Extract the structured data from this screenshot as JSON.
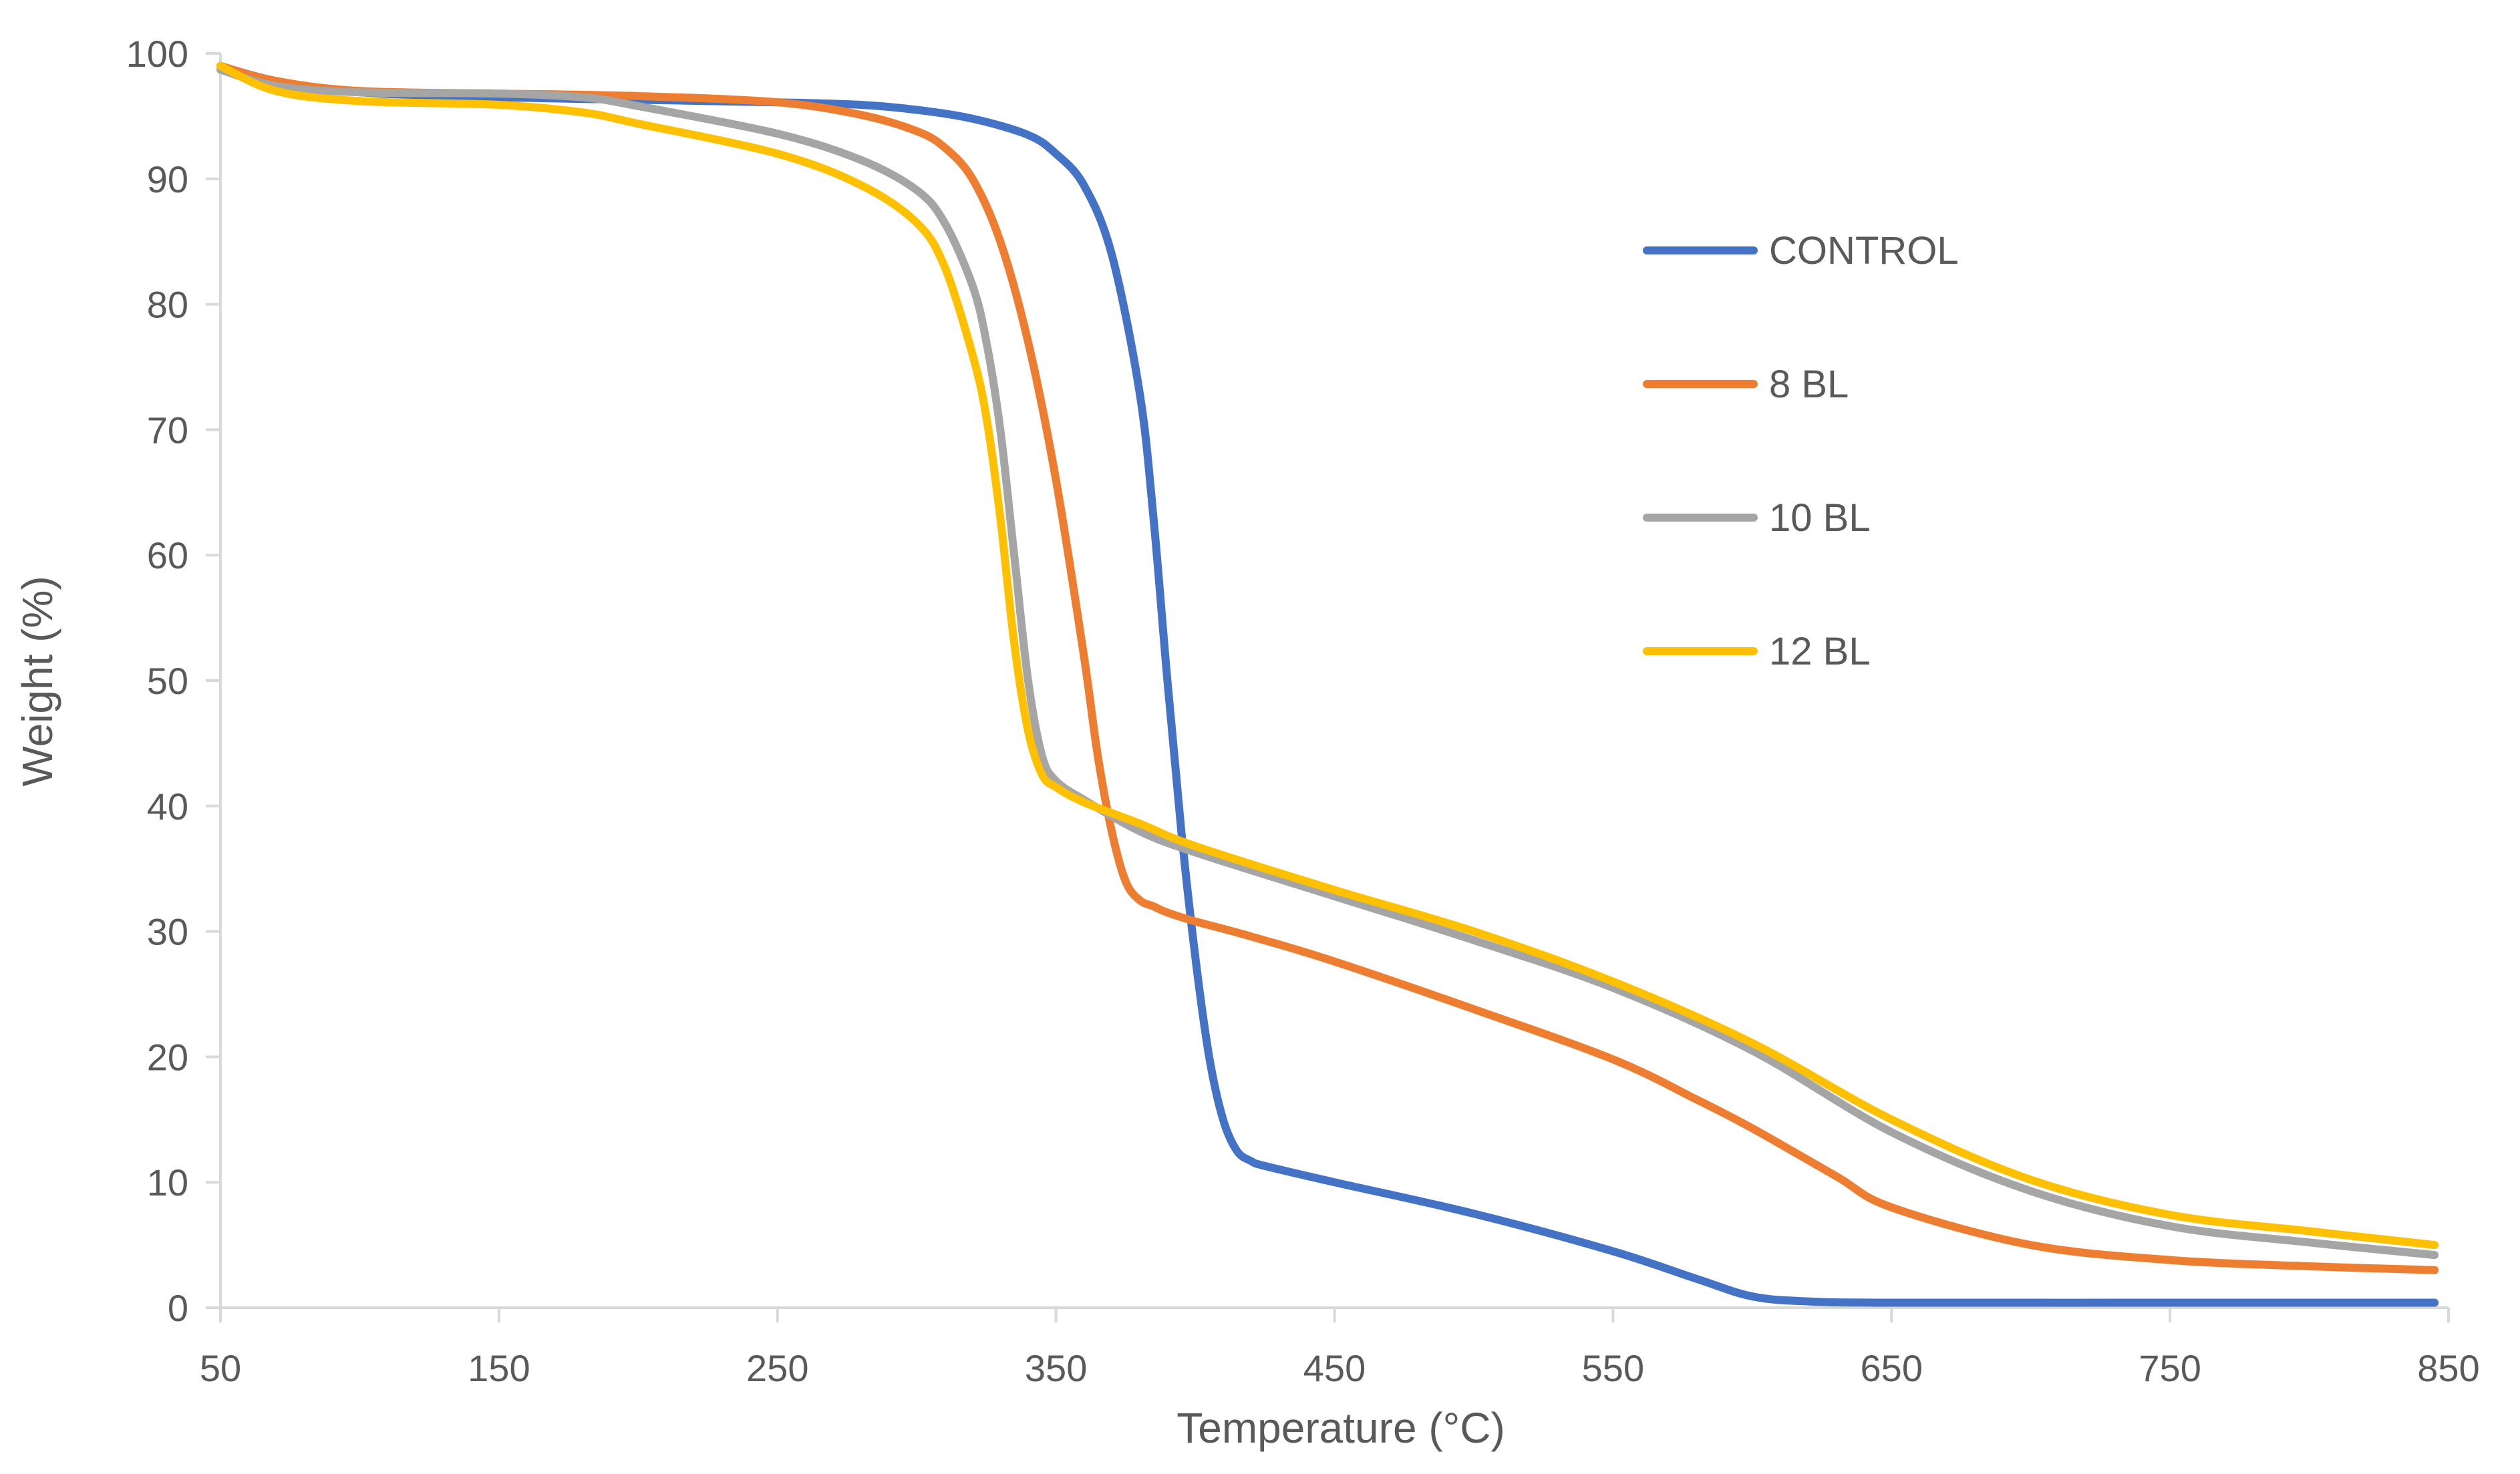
{
  "chart_data": {
    "type": "line",
    "title": "",
    "xlabel": "Temperature (°C)",
    "ylabel": "Weight (%)",
    "xlim": [
      50,
      850
    ],
    "ylim": [
      0,
      100
    ],
    "x_ticks": [
      "50",
      "150",
      "250",
      "350",
      "450",
      "550",
      "650",
      "750",
      "850"
    ],
    "y_ticks": [
      "0",
      "10",
      "20",
      "30",
      "40",
      "50",
      "60",
      "70",
      "80",
      "90",
      "100"
    ],
    "grid": false,
    "legend_position": "right",
    "series": [
      {
        "name": "CONTROL",
        "color": "#4472C4",
        "x": [
          50,
          70,
          100,
          150,
          200,
          250,
          280,
          300,
          320,
          340,
          350,
          360,
          370,
          380,
          385,
          390,
          395,
          400,
          405,
          410,
          415,
          420,
          425,
          450,
          500,
          550,
          580,
          600,
          620,
          650,
          750,
          845
        ],
        "y": [
          99,
          97.8,
          96.9,
          96.5,
          96.3,
          96.1,
          95.9,
          95.5,
          94.8,
          93.5,
          92,
          89.5,
          84,
          73,
          63,
          50,
          38,
          28,
          20,
          15,
          12.5,
          11.7,
          11.3,
          10,
          7.5,
          4.5,
          2.3,
          0.9,
          0.5,
          0.4,
          0.4,
          0.4
        ]
      },
      {
        "name": "8 BL",
        "color": "#ED7D31",
        "x": [
          50,
          70,
          100,
          150,
          200,
          250,
          280,
          300,
          310,
          320,
          330,
          340,
          350,
          360,
          365,
          370,
          375,
          380,
          385,
          390,
          400,
          420,
          450,
          500,
          550,
          580,
          600,
          630,
          650,
          700,
          750,
          800,
          845
        ],
        "y": [
          99,
          97.8,
          97,
          96.8,
          96.6,
          96.1,
          95.1,
          93.8,
          92.5,
          90,
          85,
          77,
          66,
          52,
          44,
          38,
          34,
          32.5,
          32,
          31.5,
          30.8,
          29.6,
          27.6,
          23.8,
          19.8,
          16.6,
          14.3,
          10.5,
          8,
          5,
          3.8,
          3.3,
          3
        ]
      },
      {
        "name": "10 BL",
        "color": "#A5A5A5",
        "x": [
          50,
          70,
          100,
          150,
          180,
          200,
          250,
          280,
          300,
          310,
          320,
          325,
          330,
          335,
          340,
          345,
          350,
          360,
          380,
          400,
          450,
          500,
          550,
          600,
          650,
          700,
          750,
          800,
          845
        ],
        "y": [
          98.7,
          97.4,
          96.9,
          96.8,
          96.5,
          95.8,
          93.6,
          91.5,
          89.1,
          86.5,
          81.5,
          77,
          70,
          60,
          50,
          44,
          42,
          40.5,
          38,
          36.3,
          32.8,
          29.3,
          25.5,
          20.5,
          14,
          9.3,
          6.5,
          5.2,
          4.2
        ]
      },
      {
        "name": "12 BL",
        "color": "#FFC000",
        "x": [
          50,
          70,
          100,
          150,
          180,
          200,
          250,
          280,
          300,
          310,
          320,
          325,
          330,
          335,
          340,
          345,
          350,
          360,
          380,
          400,
          450,
          500,
          550,
          600,
          650,
          700,
          750,
          800,
          845
        ],
        "y": [
          99,
          97,
          96.2,
          95.9,
          95.3,
          94.4,
          92,
          89.5,
          86.5,
          83,
          76,
          71,
          63,
          53,
          46,
          42.5,
          41.5,
          40.3,
          38.6,
          36.8,
          33.3,
          30,
          26,
          21.1,
          15,
          10.2,
          7.4,
          6.1,
          5
        ]
      }
    ]
  }
}
